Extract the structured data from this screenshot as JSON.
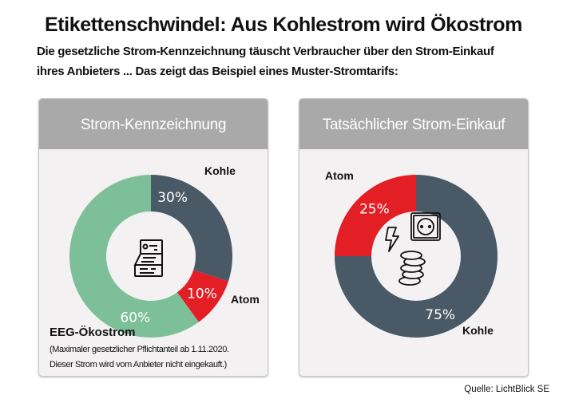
{
  "title": "Etikettenschwindel: Aus Kohlestrom wird Ökostrom",
  "subtitle_lines": [
    "Die gesetzliche Strom-Kennzeichnung täuscht Verbraucher über den Strom-Einkauf",
    "ihres Anbieters ... Das zeigt das Beispiel eines Muster-Stromtarifs:"
  ],
  "source": "Quelle: LichtBlick SE",
  "chart_data": [
    {
      "type": "pie",
      "donut": true,
      "title": "Strom-Kennzeichnung",
      "center_icon": "document-label-icon",
      "slices": [
        {
          "name": "Kohle",
          "value": 30,
          "label": "30%",
          "color": "#495a66"
        },
        {
          "name": "Atom",
          "value": 10,
          "label": "10%",
          "color": "#e31e24"
        },
        {
          "name": "EEG-Ökostrom",
          "value": 60,
          "label": "60%",
          "color": "#7dbf98"
        }
      ],
      "note_lines": [
        "(Maximaler gesetzlicher Pflichtanteil ab 1.11.2020.",
        "Dieser Strom wird vom Anbieter nicht eingekauft.)"
      ]
    },
    {
      "type": "pie",
      "donut": true,
      "title": "Tatsächlicher Strom-Einkauf",
      "center_icons": [
        "lightning-icon",
        "power-socket-icon",
        "coins-icon"
      ],
      "slices": [
        {
          "name": "Kohle",
          "value": 75,
          "label": "75%",
          "color": "#495a66"
        },
        {
          "name": "Atom",
          "value": 25,
          "label": "25%",
          "color": "#e31e24"
        }
      ]
    }
  ]
}
